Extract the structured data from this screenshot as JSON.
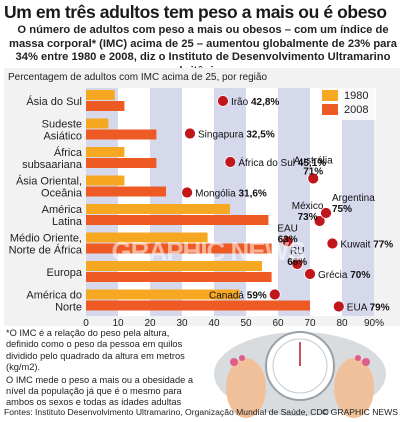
{
  "title": "Um em três adultos tem peso a mais ou é obeso",
  "subtitle": "O número de adultos com peso a mais ou obesos – com um índice de massa corporal* (IMC) acima de 25 – aumentou globalmente de 23% para 34% entre 1980 e 2008, diz o Instituto de Desenvolvimento Ultramarino britânico",
  "note_lines": [
    "*O IMC é a relação do peso pela altura, definido como o peso da pessoa em quilos dividido pelo quadrado da altura em metros (kg/m2).",
    "O IMC mede o peso a mais ou a obesidade a nível da população já que é o mesmo para ambos os sexos e todas as idades adultas"
  ],
  "source": "Fontes: Instituto Desenvolvimento Ultramarino, Organização Mundial de Saúde, CDC",
  "credit": "© GRAPHIC NEWS",
  "watermark": "GRAPHIC NEWS",
  "colors": {
    "bar_1980": "#f7a823",
    "bar_2008": "#ee5a24",
    "band": "#d6d8ec",
    "dot": "#c0161c",
    "box_bg": "#f2f2f2"
  },
  "chart_data": {
    "type": "bar",
    "orientation": "horizontal",
    "ylabel": "Percentagem de adultos com IMC acima de 25, por região",
    "categories": [
      "Ásia do Sul",
      "Sudeste Asiático",
      "África subsaariana",
      "Ásia Oriental, Oceânia",
      "América Latina",
      "Médio Oriente, Norte de África",
      "Europa",
      "América do Norte"
    ],
    "series": [
      {
        "name": "1980",
        "values": [
          9,
          7,
          12,
          12,
          45,
          38,
          55,
          48
        ]
      },
      {
        "name": "2008",
        "values": [
          12,
          22,
          22,
          25,
          57,
          58,
          58,
          70
        ]
      }
    ],
    "xlim": [
      0,
      90
    ],
    "xticks": [
      0,
      10,
      20,
      30,
      40,
      50,
      60,
      70,
      80,
      90
    ],
    "xtick_labels": [
      "0",
      "10",
      "20",
      "30",
      "40",
      "50",
      "60",
      "70",
      "80",
      "90%"
    ],
    "legend_position": "top-right",
    "country_points": [
      {
        "label": "Irão",
        "value": "42,8%",
        "x": 42.8
      },
      {
        "label": "Singapura",
        "value": "32,5%",
        "x": 32.5
      },
      {
        "label": "África do Sul",
        "value": "45,1%",
        "x": 45.1
      },
      {
        "label": "Mongólia",
        "value": "31,6%",
        "x": 31.6
      },
      {
        "label": "Austrália",
        "value": "71%",
        "x": 71
      },
      {
        "label": "México",
        "value": "73%",
        "x": 73
      },
      {
        "label": "Argentina",
        "value": "75%",
        "x": 75
      },
      {
        "label": "EAU",
        "value": "63%",
        "x": 63
      },
      {
        "label": "Kuwait",
        "value": "77%",
        "x": 77
      },
      {
        "label": "RU",
        "value": "66%",
        "x": 66
      },
      {
        "label": "Grécia",
        "value": "70%",
        "x": 70
      },
      {
        "label": "Canadá",
        "value": "59%",
        "x": 59
      },
      {
        "label": "EUA",
        "value": "79%",
        "x": 79
      }
    ]
  }
}
